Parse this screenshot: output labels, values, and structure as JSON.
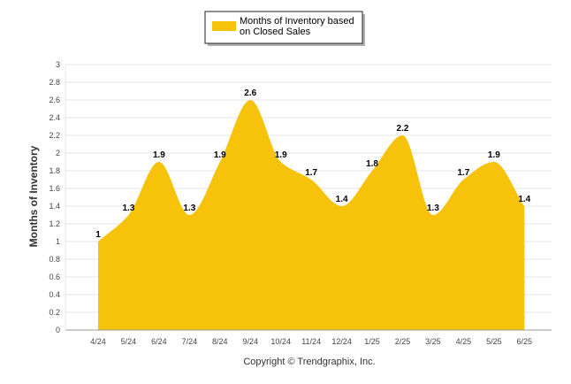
{
  "chart_data": {
    "type": "area",
    "categories": [
      "4/24",
      "5/24",
      "6/24",
      "7/24",
      "8/24",
      "9/24",
      "10/24",
      "11/24",
      "12/24",
      "1/25",
      "2/25",
      "3/25",
      "4/25",
      "5/25",
      "6/25"
    ],
    "series": [
      {
        "name": "Months of Inventory based on Closed Sales",
        "values": [
          1,
          1.3,
          1.9,
          1.3,
          1.9,
          2.6,
          1.9,
          1.7,
          1.4,
          1.8,
          2.2,
          1.3,
          1.7,
          1.9,
          1.4
        ]
      }
    ],
    "data_labels": [
      "1",
      "1.3",
      "1.9",
      "1.3",
      "1.9",
      "2.6",
      "1.9",
      "1.7",
      "1.4",
      "1.8",
      "2.2",
      "1.3",
      "1.7",
      "1.9",
      "1.4"
    ],
    "yticks": [
      "0",
      "0.2",
      "0.4",
      "0.6",
      "0.8",
      "1",
      "1.2",
      "1.4",
      "1.6",
      "1.8",
      "2",
      "2.2",
      "2.4",
      "2.6",
      "2.8",
      "3"
    ],
    "title": "",
    "xlabel": "",
    "ylabel": "Months of Inventory",
    "ylim": [
      0,
      3
    ],
    "grid": true,
    "legend_position": "top-center",
    "credit": "Copyright © Trendgraphix, Inc.",
    "colors": {
      "fill": "#f7c20a",
      "grid": "#e6e6e6",
      "axis": "#999999"
    }
  }
}
